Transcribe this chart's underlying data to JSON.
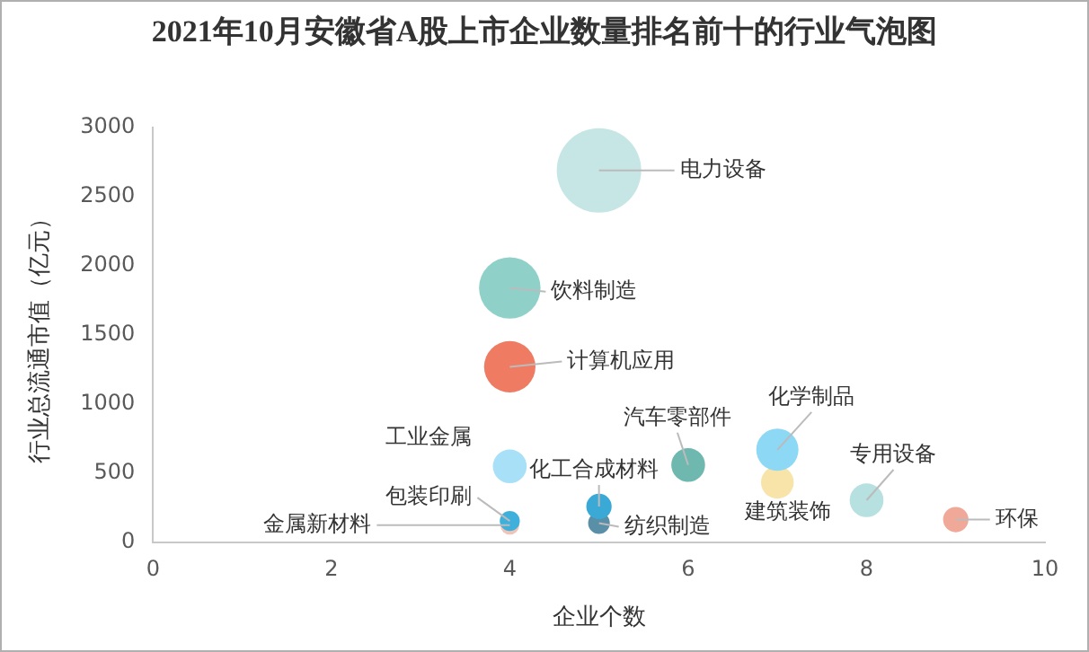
{
  "chart_data": {
    "type": "bubble",
    "title": "2021年10月安徽省A股上市企业数量排名前十的行业气泡图",
    "xlabel": "企业个数",
    "ylabel": "行业总流通市值（亿元）",
    "xlim": [
      0,
      10
    ],
    "xticks": [
      0,
      2,
      4,
      6,
      8,
      10
    ],
    "ylim": [
      0,
      3000
    ],
    "yticks": [
      0,
      500,
      1000,
      1500,
      2000,
      2500,
      3000
    ],
    "grid": false,
    "legend": false,
    "series": [
      {
        "name": "电力设备",
        "color": "#c5e6e4",
        "x": [
          5
        ],
        "values": [
          2690
        ],
        "sizes": [
          1
        ]
      },
      {
        "name": "饮料制造",
        "color": "#8fd0c9",
        "x": [
          4
        ],
        "values": [
          1840
        ],
        "sizes": [
          0.53
        ]
      },
      {
        "name": "计算机应用",
        "color": "#ee7b62",
        "x": [
          4
        ],
        "values": [
          1270
        ],
        "sizes": [
          0.37
        ]
      },
      {
        "name": "工业金属",
        "color": "#a8e0f8",
        "x": [
          4
        ],
        "values": [
          550
        ],
        "sizes": [
          0.16
        ]
      },
      {
        "name": "包装印刷",
        "color": "#3fb0dc",
        "x": [
          4
        ],
        "values": [
          155
        ],
        "sizes": [
          0.056
        ]
      },
      {
        "name": "金属新材料",
        "color": "#f2c4b8",
        "x": [
          4
        ],
        "values": [
          125
        ],
        "sizes": [
          0.05
        ]
      },
      {
        "name": "化工合成材料",
        "color": "#3aa9d6",
        "x": [
          5
        ],
        "values": [
          260
        ],
        "sizes": [
          0.09
        ]
      },
      {
        "name": "纺织制造",
        "color": "#5a8fa8",
        "x": [
          5
        ],
        "values": [
          140
        ],
        "sizes": [
          0.066
        ]
      },
      {
        "name": "汽车零部件",
        "color": "#6fb8b0",
        "x": [
          6
        ],
        "values": [
          560
        ],
        "sizes": [
          0.16
        ]
      },
      {
        "name": "化学制品",
        "color": "#8dd8f5",
        "x": [
          7
        ],
        "values": [
          670
        ],
        "sizes": [
          0.25
        ]
      },
      {
        "name": "建筑装饰",
        "color": "#f8e4a8",
        "x": [
          7
        ],
        "values": [
          435
        ],
        "sizes": [
          0.15
        ]
      },
      {
        "name": "专用设备",
        "color": "#b7e0e0",
        "x": [
          8
        ],
        "values": [
          305
        ],
        "sizes": [
          0.16
        ]
      },
      {
        "name": "环保",
        "color": "#f0a898",
        "x": [
          9
        ],
        "values": [
          165
        ],
        "sizes": [
          0.09
        ]
      }
    ]
  }
}
